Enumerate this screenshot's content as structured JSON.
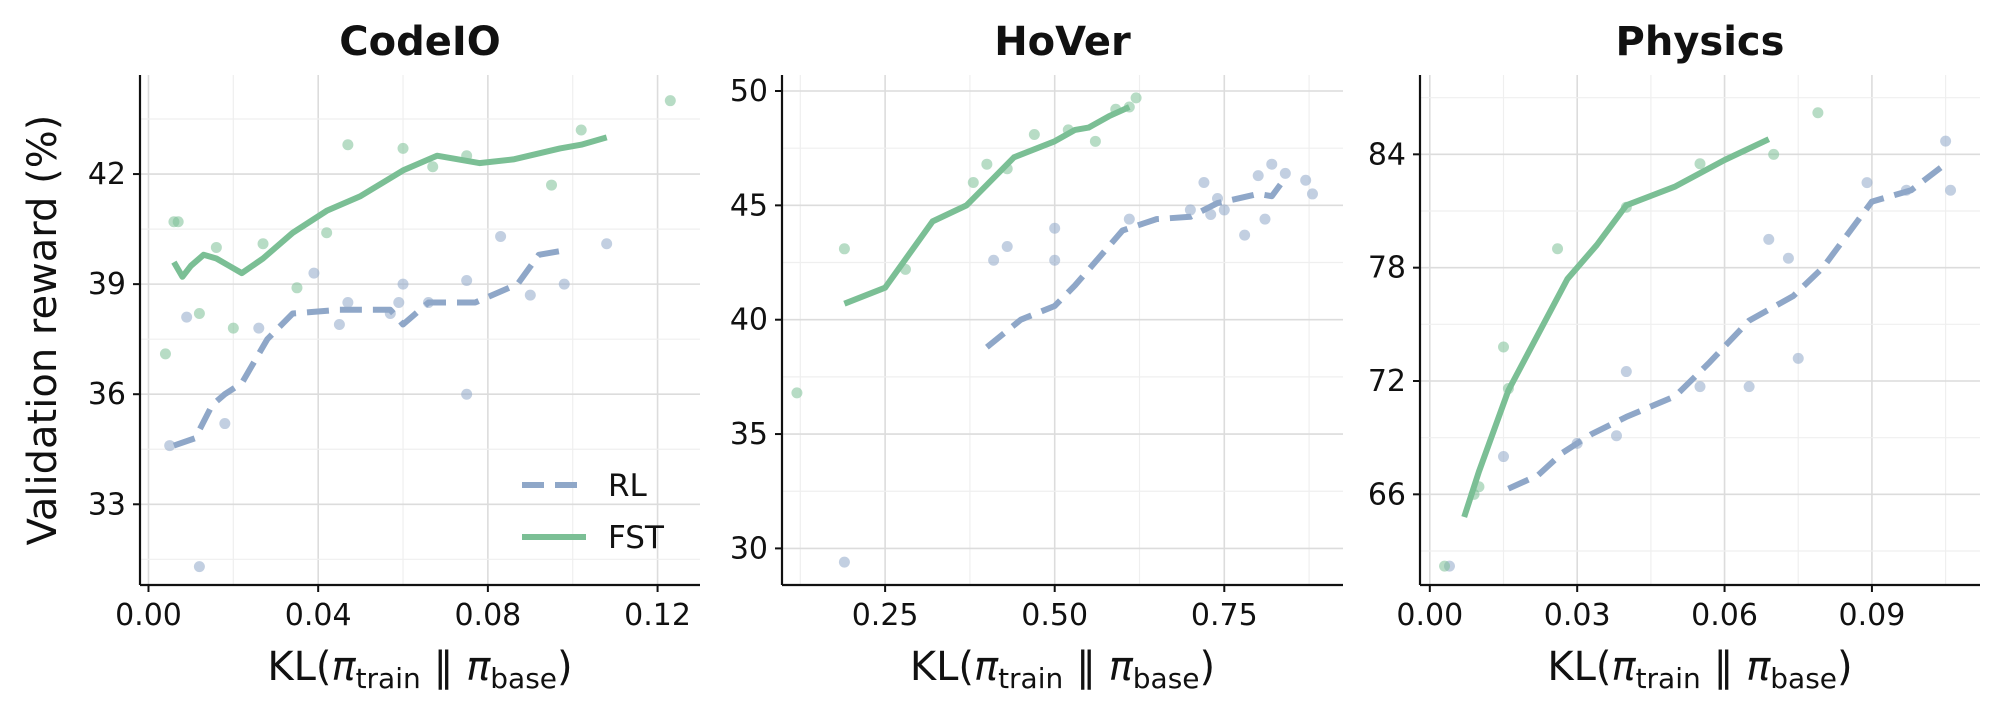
{
  "figure": {
    "ylabel": "Validation reward (%)",
    "xlabel_parts": [
      "KL(",
      "π",
      "train",
      " ‖ ",
      "π",
      "base",
      ")"
    ]
  },
  "legend": [
    {
      "name": "RL",
      "style": "dashed",
      "color": "#8fa7c8"
    },
    {
      "name": "FST",
      "style": "solid",
      "color": "#7bbf95"
    }
  ],
  "chart_data": [
    {
      "type": "line",
      "title": "CodeIO",
      "xticks": [
        "0.00",
        "0.04",
        "0.08",
        "0.12"
      ],
      "yticks": [
        "33",
        "36",
        "39",
        "42"
      ],
      "xtick_values": [
        0.0,
        0.04,
        0.08,
        0.12
      ],
      "ytick_values": [
        33,
        36,
        39,
        42
      ],
      "xlim": [
        -0.002,
        0.13
      ],
      "ylim": [
        30.8,
        44.7
      ],
      "series": [
        {
          "name": "RL",
          "line": [
            [
              0.006,
              34.6
            ],
            [
              0.011,
              34.8
            ],
            [
              0.015,
              35.7
            ],
            [
              0.018,
              36.0
            ],
            [
              0.022,
              36.3
            ],
            [
              0.028,
              37.5
            ],
            [
              0.034,
              38.2
            ],
            [
              0.045,
              38.3
            ],
            [
              0.055,
              38.3
            ],
            [
              0.057,
              38.3
            ],
            [
              0.06,
              37.9
            ],
            [
              0.066,
              38.5
            ],
            [
              0.07,
              38.5
            ],
            [
              0.077,
              38.5
            ],
            [
              0.087,
              39.0
            ],
            [
              0.092,
              39.8
            ],
            [
              0.097,
              39.9
            ]
          ],
          "points": [
            [
              0.005,
              34.6
            ],
            [
              0.009,
              38.1
            ],
            [
              0.012,
              31.3
            ],
            [
              0.018,
              35.2
            ],
            [
              0.026,
              37.8
            ],
            [
              0.039,
              39.3
            ],
            [
              0.045,
              37.9
            ],
            [
              0.047,
              38.5
            ],
            [
              0.057,
              38.2
            ],
            [
              0.059,
              38.5
            ],
            [
              0.06,
              39.0
            ],
            [
              0.066,
              38.5
            ],
            [
              0.075,
              36.0
            ],
            [
              0.075,
              39.1
            ],
            [
              0.083,
              40.3
            ],
            [
              0.09,
              38.7
            ],
            [
              0.098,
              39.0
            ],
            [
              0.108,
              40.1
            ]
          ]
        },
        {
          "name": "FST",
          "line": [
            [
              0.006,
              39.6
            ],
            [
              0.008,
              39.2
            ],
            [
              0.01,
              39.5
            ],
            [
              0.013,
              39.8
            ],
            [
              0.016,
              39.7
            ],
            [
              0.019,
              39.5
            ],
            [
              0.022,
              39.3
            ],
            [
              0.027,
              39.7
            ],
            [
              0.034,
              40.4
            ],
            [
              0.042,
              41.0
            ],
            [
              0.05,
              41.4
            ],
            [
              0.06,
              42.1
            ],
            [
              0.068,
              42.5
            ],
            [
              0.078,
              42.3
            ],
            [
              0.086,
              42.4
            ],
            [
              0.097,
              42.7
            ],
            [
              0.102,
              42.8
            ],
            [
              0.108,
              43.0
            ]
          ],
          "points": [
            [
              0.004,
              37.1
            ],
            [
              0.006,
              40.7
            ],
            [
              0.007,
              40.7
            ],
            [
              0.012,
              38.2
            ],
            [
              0.016,
              40.0
            ],
            [
              0.02,
              37.8
            ],
            [
              0.027,
              40.1
            ],
            [
              0.035,
              38.9
            ],
            [
              0.042,
              40.4
            ],
            [
              0.047,
              42.8
            ],
            [
              0.06,
              42.7
            ],
            [
              0.067,
              42.2
            ],
            [
              0.075,
              42.5
            ],
            [
              0.095,
              41.7
            ],
            [
              0.102,
              43.2
            ],
            [
              0.123,
              44.0
            ]
          ]
        }
      ]
    },
    {
      "type": "line",
      "title": "HoVer",
      "xticks": [
        "0.25",
        "0.50",
        "0.75"
      ],
      "yticks": [
        "30",
        "35",
        "40",
        "45",
        "50"
      ],
      "xtick_values": [
        0.25,
        0.5,
        0.75
      ],
      "ytick_values": [
        30,
        35,
        40,
        45,
        50
      ],
      "xlim": [
        0.098,
        0.925
      ],
      "ylim": [
        28.4,
        50.7
      ],
      "series": [
        {
          "name": "RL",
          "line": [
            [
              0.4,
              38.8
            ],
            [
              0.45,
              40.0
            ],
            [
              0.5,
              40.6
            ],
            [
              0.53,
              41.5
            ],
            [
              0.6,
              43.9
            ],
            [
              0.65,
              44.4
            ],
            [
              0.7,
              44.5
            ],
            [
              0.74,
              45.1
            ],
            [
              0.8,
              45.5
            ],
            [
              0.82,
              45.4
            ],
            [
              0.84,
              46.2
            ]
          ],
          "points": [
            [
              0.19,
              29.4
            ],
            [
              0.41,
              42.6
            ],
            [
              0.43,
              43.2
            ],
            [
              0.5,
              44.0
            ],
            [
              0.5,
              42.6
            ],
            [
              0.61,
              44.4
            ],
            [
              0.7,
              44.8
            ],
            [
              0.72,
              46.0
            ],
            [
              0.73,
              44.6
            ],
            [
              0.74,
              45.3
            ],
            [
              0.75,
              44.8
            ],
            [
              0.78,
              43.7
            ],
            [
              0.8,
              46.3
            ],
            [
              0.81,
              44.4
            ],
            [
              0.82,
              46.8
            ],
            [
              0.84,
              46.4
            ],
            [
              0.87,
              46.1
            ],
            [
              0.88,
              45.5
            ]
          ]
        },
        {
          "name": "FST",
          "line": [
            [
              0.19,
              40.7
            ],
            [
              0.25,
              41.4
            ],
            [
              0.32,
              44.3
            ],
            [
              0.37,
              45.0
            ],
            [
              0.4,
              45.9
            ],
            [
              0.44,
              47.1
            ],
            [
              0.5,
              47.8
            ],
            [
              0.53,
              48.3
            ],
            [
              0.55,
              48.4
            ],
            [
              0.58,
              48.9
            ],
            [
              0.61,
              49.3
            ]
          ],
          "points": [
            [
              0.12,
              36.8
            ],
            [
              0.19,
              43.1
            ],
            [
              0.28,
              42.2
            ],
            [
              0.38,
              46.0
            ],
            [
              0.4,
              46.8
            ],
            [
              0.43,
              46.6
            ],
            [
              0.47,
              48.1
            ],
            [
              0.52,
              48.3
            ],
            [
              0.56,
              47.8
            ],
            [
              0.59,
              49.2
            ],
            [
              0.61,
              49.3
            ],
            [
              0.62,
              49.7
            ]
          ]
        }
      ]
    },
    {
      "type": "line",
      "title": "Physics",
      "xticks": [
        "0.00",
        "0.03",
        "0.06",
        "0.09"
      ],
      "yticks": [
        "66",
        "72",
        "78",
        "84"
      ],
      "xtick_values": [
        0.0,
        0.03,
        0.06,
        0.09
      ],
      "ytick_values": [
        66,
        72,
        78,
        84
      ],
      "xlim": [
        -0.002,
        0.112
      ],
      "ylim": [
        61.2,
        88.2
      ],
      "series": [
        {
          "name": "RL",
          "line": [
            [
              0.016,
              66.3
            ],
            [
              0.022,
              67.0
            ],
            [
              0.027,
              68.2
            ],
            [
              0.033,
              69.2
            ],
            [
              0.04,
              70.1
            ],
            [
              0.05,
              71.2
            ],
            [
              0.057,
              73.0
            ],
            [
              0.065,
              75.2
            ],
            [
              0.074,
              76.5
            ],
            [
              0.08,
              78.0
            ],
            [
              0.09,
              81.5
            ],
            [
              0.098,
              82.1
            ],
            [
              0.104,
              83.3
            ]
          ],
          "points": [
            [
              0.004,
              62.2
            ],
            [
              0.015,
              68.0
            ],
            [
              0.03,
              68.7
            ],
            [
              0.038,
              69.1
            ],
            [
              0.04,
              72.5
            ],
            [
              0.055,
              71.7
            ],
            [
              0.065,
              71.7
            ],
            [
              0.069,
              79.5
            ],
            [
              0.073,
              78.5
            ],
            [
              0.075,
              73.2
            ],
            [
              0.089,
              82.5
            ],
            [
              0.097,
              82.1
            ],
            [
              0.105,
              84.7
            ],
            [
              0.106,
              82.1
            ]
          ]
        },
        {
          "name": "FST",
          "line": [
            [
              0.007,
              64.8
            ],
            [
              0.01,
              67.2
            ],
            [
              0.016,
              71.5
            ],
            [
              0.028,
              77.4
            ],
            [
              0.034,
              79.2
            ],
            [
              0.04,
              81.3
            ],
            [
              0.05,
              82.3
            ],
            [
              0.06,
              83.7
            ],
            [
              0.069,
              84.8
            ]
          ],
          "points": [
            [
              0.003,
              62.2
            ],
            [
              0.009,
              66.0
            ],
            [
              0.01,
              66.4
            ],
            [
              0.015,
              73.8
            ],
            [
              0.016,
              71.6
            ],
            [
              0.026,
              79.0
            ],
            [
              0.04,
              81.2
            ],
            [
              0.055,
              83.5
            ],
            [
              0.07,
              84.0
            ],
            [
              0.079,
              86.2
            ]
          ]
        }
      ]
    }
  ]
}
